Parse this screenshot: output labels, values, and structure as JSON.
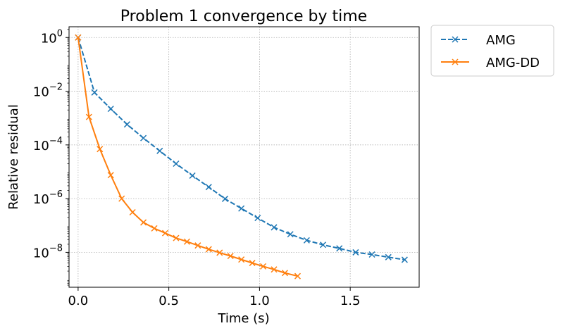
{
  "chart_data": {
    "type": "line",
    "title": "Problem 1 convergence by time",
    "xlabel": "Time (s)",
    "ylabel": "Relative residual",
    "xlim": [
      -0.05,
      1.88
    ],
    "ylim_log10": [
      -9.3,
      0.4
    ],
    "y_scale": "log",
    "grid": true,
    "legend_position": "outside-top-right",
    "x_ticks": [
      {
        "value": 0.0,
        "label": "0.0"
      },
      {
        "value": 0.5,
        "label": "0.5"
      },
      {
        "value": 1.0,
        "label": "1.0"
      },
      {
        "value": 1.5,
        "label": "1.5"
      }
    ],
    "y_ticks": [
      {
        "exp": 0,
        "base": "10",
        "sup": "0"
      },
      {
        "exp": -2,
        "base": "10",
        "sup": "−2"
      },
      {
        "exp": -4,
        "base": "10",
        "sup": "−4"
      },
      {
        "exp": -6,
        "base": "10",
        "sup": "−6"
      },
      {
        "exp": -8,
        "base": "10",
        "sup": "−8"
      }
    ],
    "series": [
      {
        "name": "AMG",
        "color": "#1f77b4",
        "linestyle": "dashed",
        "marker": "x",
        "x": [
          0.0,
          0.09,
          0.18,
          0.27,
          0.36,
          0.45,
          0.54,
          0.63,
          0.72,
          0.81,
          0.9,
          0.99,
          1.08,
          1.17,
          1.26,
          1.35,
          1.44,
          1.53,
          1.62,
          1.71,
          1.8
        ],
        "y": [
          1.0,
          0.009,
          0.0022,
          0.00058,
          0.00018,
          6e-05,
          2e-05,
          7.2e-06,
          2.7e-06,
          9.8e-07,
          4.3e-07,
          1.9e-07,
          8.5e-08,
          4.7e-08,
          2.8e-08,
          1.9e-08,
          1.4e-08,
          1e-08,
          8.3e-09,
          6.6e-09,
          5.3e-09
        ]
      },
      {
        "name": "AMG-DD",
        "color": "#ff7f0e",
        "linestyle": "solid",
        "marker": "x",
        "x": [
          0.0,
          0.06,
          0.12,
          0.18,
          0.24,
          0.3,
          0.36,
          0.42,
          0.48,
          0.54,
          0.6,
          0.66,
          0.72,
          0.78,
          0.84,
          0.9,
          0.96,
          1.02,
          1.08,
          1.14,
          1.21
        ],
        "y": [
          1.0,
          0.0011,
          7e-05,
          7.5e-06,
          1e-06,
          3.1e-07,
          1.3e-07,
          7.8e-08,
          5.2e-08,
          3.4e-08,
          2.5e-08,
          1.8e-08,
          1.3e-08,
          9.7e-09,
          7.3e-09,
          5.4e-09,
          4e-09,
          3e-09,
          2.3e-09,
          1.7e-09,
          1.3e-09
        ]
      }
    ]
  }
}
